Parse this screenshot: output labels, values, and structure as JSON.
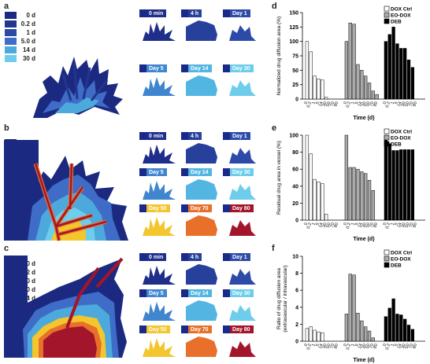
{
  "panels": {
    "a": {
      "letter": "a",
      "legend": [
        {
          "label": "0 d",
          "color": "#1b2a80"
        },
        {
          "label": "0.2 d",
          "color": "#22368f"
        },
        {
          "label": "1 d",
          "color": "#2a4aa5"
        },
        {
          "label": "5.0 d",
          "color": "#3e6cc6"
        },
        {
          "label": "14 d",
          "color": "#4da9dc"
        },
        {
          "label": "30 d",
          "color": "#6ecdea"
        }
      ],
      "thumbs": [
        {
          "label": "0 min",
          "color": "#1e2e8a"
        },
        {
          "label": "4 h",
          "color": "#26409c"
        },
        {
          "label": "Day 1",
          "color": "#2c4aa8"
        },
        {
          "label": "Day 5",
          "color": "#3f86cf"
        },
        {
          "label": "Day 14",
          "color": "#52b5e2"
        },
        {
          "label": "Day 30",
          "color": "#6ecdea"
        }
      ]
    },
    "b": {
      "letter": "b",
      "legend": [
        {
          "label": "0 d",
          "color": "#1b2a80"
        },
        {
          "label": "0.2 d",
          "color": "#22368f"
        },
        {
          "label": "1.0 d",
          "color": "#2a4aa5"
        },
        {
          "label": "5.0 d",
          "color": "#3e6cc6"
        },
        {
          "label": "14 d",
          "color": "#4da9dc"
        },
        {
          "label": "30 d",
          "color": "#6ecdea"
        },
        {
          "label": "50 d",
          "color": "#f2c62c"
        },
        {
          "label": "70 d",
          "color": "#e8702a"
        },
        {
          "label": "80 d",
          "color": "#a3152a"
        }
      ],
      "thumbs": [
        {
          "label": "0 min",
          "color": "#1e2e8a"
        },
        {
          "label": "4 h",
          "color": "#26409c"
        },
        {
          "label": "Day 1",
          "color": "#2c4aa8"
        },
        {
          "label": "Day 5",
          "color": "#3f86cf"
        },
        {
          "label": "Day 14",
          "color": "#52b5e2"
        },
        {
          "label": "Day 30",
          "color": "#6ecdea"
        },
        {
          "label": "Day 50",
          "color": "#f2c62c"
        },
        {
          "label": "Day 70",
          "color": "#e8702a"
        },
        {
          "label": "Day 80",
          "color": "#a3152a"
        }
      ]
    },
    "c": {
      "letter": "c",
      "legend": [
        {
          "label": "0 d",
          "color": "#1b2a80"
        },
        {
          "label": "0.2 d",
          "color": "#22368f"
        },
        {
          "label": "1.0 d",
          "color": "#2a4aa5"
        },
        {
          "label": "5.0 d",
          "color": "#3e6cc6"
        },
        {
          "label": "14 d",
          "color": "#4da9dc"
        },
        {
          "label": "30 d",
          "color": "#6ecdea"
        },
        {
          "label": "50 d",
          "color": "#f2c62c"
        },
        {
          "label": "70 d",
          "color": "#e8702a"
        },
        {
          "label": "80 d",
          "color": "#a3152a"
        }
      ],
      "thumbs": [
        {
          "label": "0 min",
          "color": "#1e2e8a"
        },
        {
          "label": "4 h",
          "color": "#26409c"
        },
        {
          "label": "Day 1",
          "color": "#2c4aa8"
        },
        {
          "label": "Day 5",
          "color": "#3f86cf"
        },
        {
          "label": "Day 14",
          "color": "#52b5e2"
        },
        {
          "label": "Day 30",
          "color": "#6ecdea"
        },
        {
          "label": "Day 50",
          "color": "#f2c62c"
        },
        {
          "label": "Day 70",
          "color": "#e8702a"
        },
        {
          "label": "Day 80",
          "color": "#a3152a"
        }
      ]
    }
  },
  "chart_data": [
    {
      "panel": "d",
      "type": "bar",
      "ylabel": "Normalized drug diffusion area (%)",
      "xlabel": "Time (d)",
      "ylim": [
        0,
        150
      ],
      "yticks": [
        0,
        25,
        50,
        75,
        100,
        125,
        150
      ],
      "legend_position": "top-right",
      "categories": [
        "0",
        "0.2",
        "1",
        "5",
        "14",
        "30",
        "50",
        "70",
        "80"
      ],
      "series": [
        {
          "name": "DOX Ctrl",
          "fill": "#ffffff",
          "values": [
            100,
            82,
            40,
            35,
            33,
            3,
            0,
            0,
            0
          ]
        },
        {
          "name": "EO-DOX",
          "fill": "#aaaaaa",
          "values": [
            100,
            132,
            130,
            60,
            50,
            40,
            28,
            14,
            8
          ]
        },
        {
          "name": "DEB",
          "fill": "#000000",
          "values": [
            100,
            112,
            125,
            96,
            88,
            88,
            68,
            55,
            null
          ]
        }
      ]
    },
    {
      "panel": "e",
      "type": "bar",
      "ylabel": "Residual drug area  in vessel (%)",
      "xlabel": "Time (d)",
      "ylim": [
        0,
        100
      ],
      "yticks": [
        0,
        20,
        40,
        60,
        80,
        100
      ],
      "legend_position": "top-right",
      "categories": [
        "0",
        "0.2",
        "1",
        "5",
        "14",
        "30",
        "50",
        "70",
        "80"
      ],
      "series": [
        {
          "name": "DOX Ctrl",
          "fill": "#ffffff",
          "values": [
            100,
            78,
            48,
            45,
            43,
            7,
            0,
            0,
            0
          ]
        },
        {
          "name": "EO-DOX",
          "fill": "#aaaaaa",
          "values": [
            100,
            62,
            62,
            60,
            57,
            55,
            47,
            35,
            null
          ]
        },
        {
          "name": "DEB",
          "fill": "#000000",
          "values": [
            100,
            90,
            82,
            82,
            83,
            83,
            83,
            83,
            null
          ]
        }
      ]
    },
    {
      "panel": "f",
      "type": "bar",
      "ylabel": "Ratio of drug diffusion area\n(extravascular / intravascular)",
      "xlabel": "Time (d)",
      "ylim": [
        0,
        10
      ],
      "yticks": [
        0,
        2,
        4,
        6,
        8,
        10
      ],
      "legend_position": "top-right",
      "categories": [
        "0",
        "0.2",
        "1",
        "5",
        "14",
        "30",
        "50",
        "70",
        "80"
      ],
      "series": [
        {
          "name": "DOX Ctrl",
          "fill": "#ffffff",
          "values": [
            1.5,
            1.7,
            1.3,
            1.1,
            1.0,
            0,
            0,
            0,
            0
          ]
        },
        {
          "name": "EO-DOX",
          "fill": "#aaaaaa",
          "values": [
            3.2,
            7.9,
            7.8,
            3.3,
            2.4,
            1.7,
            1.2,
            0.4,
            null
          ]
        },
        {
          "name": "DEB",
          "fill": "#000000",
          "values": [
            2.9,
            3.9,
            5.0,
            3.2,
            3.1,
            2.6,
            1.9,
            1.4,
            null
          ]
        }
      ]
    }
  ]
}
